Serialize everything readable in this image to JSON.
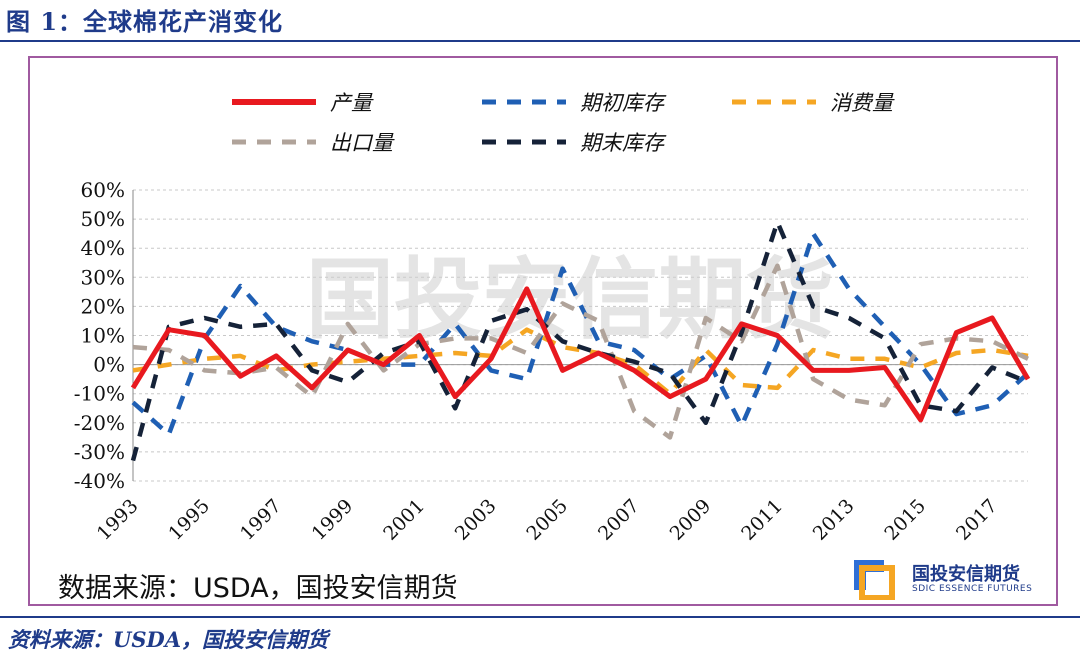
{
  "figure": {
    "title": "图 1：全球棉花产消变化",
    "footer_source": "资料来源：USDA，国投安信期货",
    "inner_source": "数据来源：USDA，国投安信期货",
    "watermark": "国投安信期货",
    "logo": {
      "cn": "国投安信期货",
      "en": "SDIC ESSENCE FUTURES"
    }
  },
  "colors": {
    "accent": "#1f3b8a",
    "frame": "#a05aa0"
  },
  "chart_data": {
    "type": "line",
    "x": [
      1993,
      1994,
      1995,
      1996,
      1997,
      1998,
      1999,
      2000,
      2001,
      2002,
      2003,
      2004,
      2005,
      2006,
      2007,
      2008,
      2009,
      2010,
      2011,
      2012,
      2013,
      2014,
      2015,
      2016,
      2017,
      2018
    ],
    "x_tick_labels": [
      "1993",
      "1995",
      "1997",
      "1999",
      "2001",
      "2003",
      "2005",
      "2007",
      "2009",
      "2011",
      "2013",
      "2015",
      "2017"
    ],
    "y_tick_labels": [
      "60%",
      "50%",
      "40%",
      "30%",
      "20%",
      "10%",
      "0%",
      "-10%",
      "-20%",
      "-30%",
      "-40%"
    ],
    "ylim": [
      -40,
      60
    ],
    "y_unit": "%",
    "grid": "horizontal",
    "legend_position": "top",
    "series": [
      {
        "name": "产量",
        "color": "#e8191f",
        "dash": "solid",
        "values": [
          -8,
          12,
          10,
          -4,
          3,
          -8,
          5,
          0,
          10,
          -11,
          2,
          26,
          -2,
          4,
          -2,
          -11,
          -5,
          14,
          10,
          -2,
          -2,
          -1,
          -19,
          11,
          16,
          -5
        ]
      },
      {
        "name": "期初库存",
        "color": "#1f5fb4",
        "dash": "dash",
        "values": [
          -13,
          -24,
          9,
          27,
          13,
          8,
          5,
          0,
          0,
          14,
          -2,
          -5,
          33,
          8,
          5,
          -5,
          3,
          -21,
          7,
          45,
          26,
          13,
          0,
          -17,
          -14,
          -3
        ]
      },
      {
        "name": "消费量",
        "color": "#f5a623",
        "dash": "dash",
        "values": [
          -2,
          0,
          2,
          3,
          -2,
          0,
          1,
          2,
          3,
          4,
          3,
          12,
          6,
          4,
          0,
          -10,
          5,
          -7,
          -8,
          5,
          2,
          2,
          -1,
          4,
          5,
          3
        ]
      },
      {
        "name": "出口量",
        "color": "#b0a39a",
        "dash": "dash",
        "values": [
          6,
          5,
          -2,
          -3,
          -1,
          -11,
          14,
          -2,
          7,
          9,
          9,
          4,
          21,
          15,
          -16,
          -25,
          16,
          8,
          34,
          -5,
          -12,
          -14,
          7,
          9,
          8,
          2
        ]
      },
      {
        "name": "期末库存",
        "color": "#152238",
        "dash": "dash",
        "values": [
          -33,
          13,
          16,
          13,
          14,
          -2,
          -6,
          4,
          8,
          -15,
          15,
          19,
          8,
          4,
          1,
          -3,
          -20,
          11,
          49,
          20,
          16,
          9,
          -14,
          -16,
          -1,
          -6
        ]
      }
    ]
  }
}
